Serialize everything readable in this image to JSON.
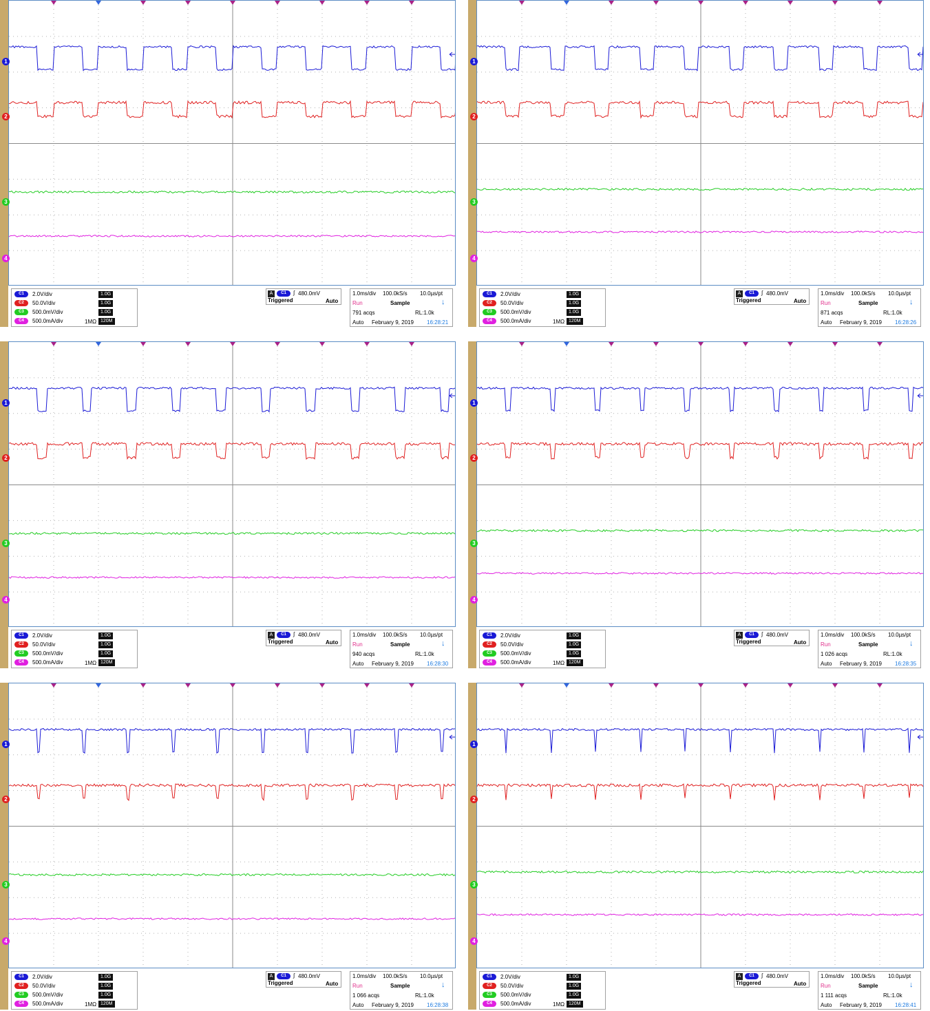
{
  "panels": [
    {
      "channels": [
        {
          "id": "C1",
          "label": "C1",
          "scale": "2.0V/div",
          "bw": "1.0G",
          "impedance": ""
        },
        {
          "id": "C2",
          "label": "C2",
          "scale": "50.0V/div",
          "bw": "1.0G",
          "impedance": ""
        },
        {
          "id": "C3",
          "label": "C3",
          "scale": "500.0mV/div",
          "bw": "1.0G",
          "impedance": ""
        },
        {
          "id": "C4",
          "label": "C4",
          "scale": "500.0mA/div",
          "bw": "120M",
          "impedance": "1MΩ"
        }
      ],
      "trigger": {
        "source": "C1",
        "level": "480.0mV",
        "state": "Triggered",
        "mode": "Auto"
      },
      "timebase": {
        "div": "1.0ms/div",
        "rate": "100.0kS/s",
        "pt": "10.0µs/pt"
      },
      "acq": {
        "state": "Run",
        "mode": "Sample",
        "count": "791 acqs",
        "rl": "RL:1.0k"
      },
      "footer": {
        "mode": "Auto",
        "date": "February 9, 2019",
        "time": "16:28:21"
      },
      "duty": 0.35
    },
    {
      "channels": [
        {
          "id": "C1",
          "label": "C1",
          "scale": "2.0V/div",
          "bw": "1.0G",
          "impedance": ""
        },
        {
          "id": "C2",
          "label": "C2",
          "scale": "50.0V/div",
          "bw": "1.0G",
          "impedance": ""
        },
        {
          "id": "C3",
          "label": "C3",
          "scale": "500.0mV/div",
          "bw": "1.0G",
          "impedance": ""
        },
        {
          "id": "C4",
          "label": "C4",
          "scale": "500.0mA/div",
          "bw": "120M",
          "impedance": "1MΩ"
        }
      ],
      "trigger": {
        "source": "C1",
        "level": "480.0mV",
        "state": "Triggered",
        "mode": "Auto"
      },
      "timebase": {
        "div": "1.0ms/div",
        "rate": "100.0kS/s",
        "pt": "10.0µs/pt"
      },
      "acq": {
        "state": "Run",
        "mode": "Sample",
        "count": "871 acqs",
        "rl": "RL:1.0k"
      },
      "footer": {
        "mode": "Auto",
        "date": "February 9, 2019",
        "time": "16:28:26"
      },
      "duty": 0.3
    },
    {
      "channels": [
        {
          "id": "C1",
          "label": "C1",
          "scale": "2.0V/div",
          "bw": "1.0G",
          "impedance": ""
        },
        {
          "id": "C2",
          "label": "C2",
          "scale": "50.0V/div",
          "bw": "1.0G",
          "impedance": ""
        },
        {
          "id": "C3",
          "label": "C3",
          "scale": "500.0mV/div",
          "bw": "1.0G",
          "impedance": ""
        },
        {
          "id": "C4",
          "label": "C4",
          "scale": "500.0mA/div",
          "bw": "120M",
          "impedance": "1MΩ"
        }
      ],
      "trigger": {
        "source": "C1",
        "level": "480.0mV",
        "state": "Triggered",
        "mode": "Auto"
      },
      "timebase": {
        "div": "1.0ms/div",
        "rate": "100.0kS/s",
        "pt": "10.0µs/pt"
      },
      "acq": {
        "state": "Run",
        "mode": "Sample",
        "count": "940 acqs",
        "rl": "RL:1.0k"
      },
      "footer": {
        "mode": "Auto",
        "date": "February 9, 2019",
        "time": "16:28:30"
      },
      "duty": 0.2
    },
    {
      "channels": [
        {
          "id": "C1",
          "label": "C1",
          "scale": "2.0V/div",
          "bw": "1.0G",
          "impedance": ""
        },
        {
          "id": "C2",
          "label": "C2",
          "scale": "50.0V/div",
          "bw": "1.0G",
          "impedance": ""
        },
        {
          "id": "C3",
          "label": "C3",
          "scale": "500.0mV/div",
          "bw": "1.0G",
          "impedance": ""
        },
        {
          "id": "C4",
          "label": "C4",
          "scale": "500.0mA/div",
          "bw": "120M",
          "impedance": "1MΩ"
        }
      ],
      "trigger": {
        "source": "C1",
        "level": "480.0mV",
        "state": "Triggered",
        "mode": "Auto"
      },
      "timebase": {
        "div": "1.0ms/div",
        "rate": "100.0kS/s",
        "pt": "10.0µs/pt"
      },
      "acq": {
        "state": "Run",
        "mode": "Sample",
        "count": "1 026 acqs",
        "rl": "RL:1.0k"
      },
      "footer": {
        "mode": "Auto",
        "date": "February 9, 2019",
        "time": "16:28:35"
      },
      "duty": 0.1
    },
    {
      "channels": [
        {
          "id": "C1",
          "label": "C1",
          "scale": "2.0V/div",
          "bw": "1.0G",
          "impedance": ""
        },
        {
          "id": "C2",
          "label": "C2",
          "scale": "50.0V/div",
          "bw": "1.0G",
          "impedance": ""
        },
        {
          "id": "C3",
          "label": "C3",
          "scale": "500.0mV/div",
          "bw": "1.0G",
          "impedance": ""
        },
        {
          "id": "C4",
          "label": "C4",
          "scale": "500.0mA/div",
          "bw": "120M",
          "impedance": "1MΩ"
        }
      ],
      "trigger": {
        "source": "C1",
        "level": "480.0mV",
        "state": "Triggered",
        "mode": "Auto"
      },
      "timebase": {
        "div": "1.0ms/div",
        "rate": "100.0kS/s",
        "pt": "10.0µs/pt"
      },
      "acq": {
        "state": "Run",
        "mode": "Sample",
        "count": "1 066 acqs",
        "rl": "RL:1.0k"
      },
      "footer": {
        "mode": "Auto",
        "date": "February 9, 2019",
        "time": "16:28:38"
      },
      "duty": 0.05
    },
    {
      "channels": [
        {
          "id": "C1",
          "label": "C1",
          "scale": "2.0V/div",
          "bw": "1.0G",
          "impedance": ""
        },
        {
          "id": "C2",
          "label": "C2",
          "scale": "50.0V/div",
          "bw": "1.0G",
          "impedance": ""
        },
        {
          "id": "C3",
          "label": "C3",
          "scale": "500.0mV/div",
          "bw": "1.0G",
          "impedance": ""
        },
        {
          "id": "C4",
          "label": "C4",
          "scale": "500.0mA/div",
          "bw": "120M",
          "impedance": "1MΩ"
        }
      ],
      "trigger": {
        "source": "C1",
        "level": "480.0mV",
        "state": "Triggered",
        "mode": "Auto"
      },
      "timebase": {
        "div": "1.0ms/div",
        "rate": "100.0kS/s",
        "pt": "10.0µs/pt"
      },
      "acq": {
        "state": "Run",
        "mode": "Sample",
        "count": "1 111 acqs",
        "rl": "RL:1.0k"
      },
      "footer": {
        "mode": "Auto",
        "date": "February 9, 2019",
        "time": "16:28:41"
      },
      "duty": 0.02
    }
  ],
  "colors": {
    "c1": "#1a1ad6",
    "c2": "#e02020",
    "c3": "#22cc22",
    "c4": "#e020e0",
    "grid": "#b0b0b0",
    "border": "#5b8cc4"
  }
}
